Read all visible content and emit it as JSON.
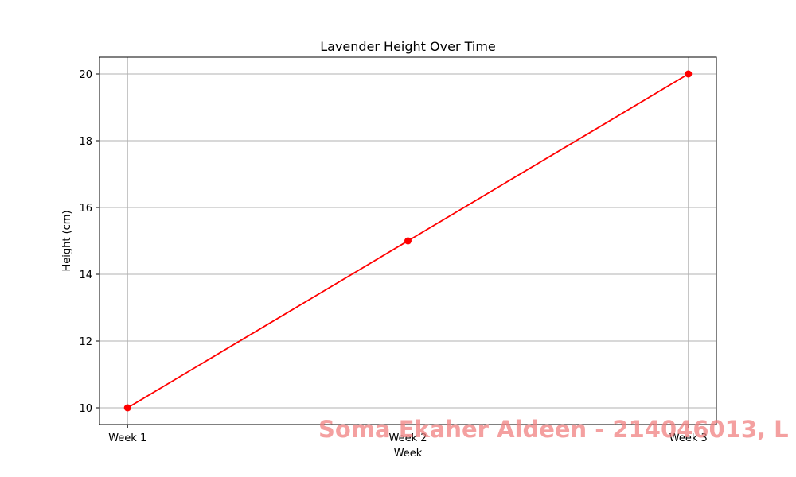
{
  "chart_data": {
    "type": "line",
    "title": "Lavender Height Over Time",
    "xlabel": "Week",
    "ylabel": "Height (cm)",
    "categories": [
      "Week 1",
      "Week 2",
      "Week 3"
    ],
    "series": [
      {
        "values": [
          10,
          15,
          20
        ],
        "color": "#ff0000",
        "marker": "circle"
      }
    ],
    "ylim": [
      9.5,
      20.5
    ],
    "yticks": [
      10,
      12,
      14,
      16,
      18,
      20
    ],
    "grid": true,
    "legend": "none"
  },
  "watermark": {
    "text": "Soma Ekaher Aldeen - 214046013, L",
    "color": "#f08080"
  }
}
